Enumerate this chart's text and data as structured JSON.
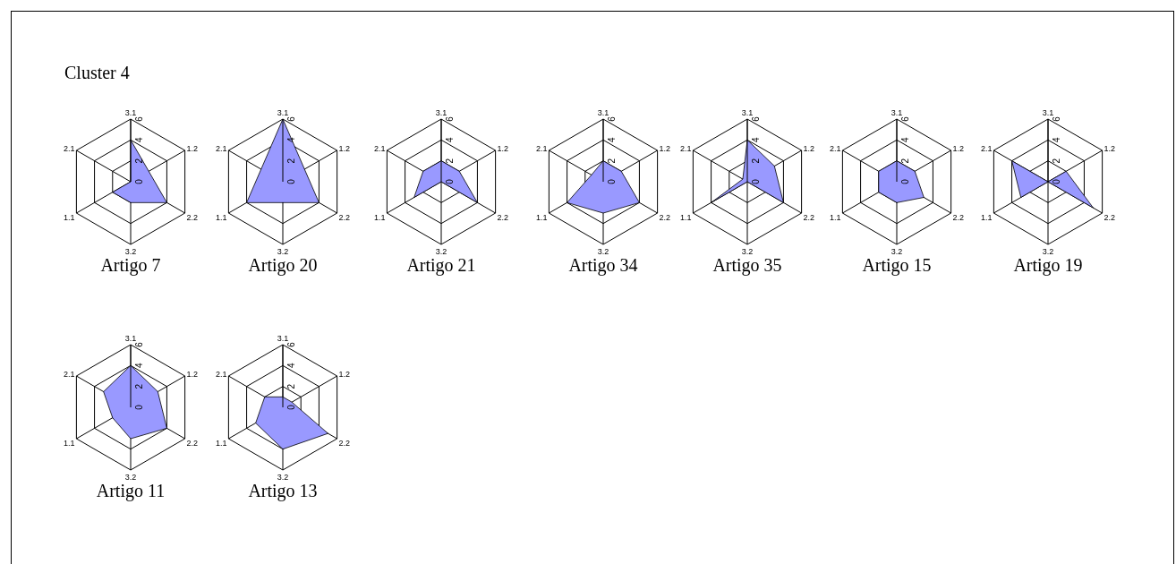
{
  "chart_data": [
    {
      "type": "radar",
      "title": "Artigo 7",
      "annotations": [
        "Cluster 4"
      ],
      "categories": [
        "3.1",
        "1.2",
        "2.2",
        "3.2",
        "1.1",
        "2.1"
      ],
      "series": [
        {
          "color": "#9999ff",
          "values": [
            4,
            2,
            4,
            2,
            2,
            0
          ]
        }
      ],
      "ylim": [
        0,
        6
      ],
      "yticks": [
        0,
        2,
        4,
        6
      ],
      "grid": true
    },
    {
      "type": "radar",
      "title": "Artigo 20",
      "categories": [
        "3.1",
        "1.2",
        "2.2",
        "3.2",
        "1.1",
        "2.1"
      ],
      "series": [
        {
          "color": "#9999ff",
          "values": [
            6,
            2.4,
            4,
            2,
            4,
            2.4
          ]
        }
      ],
      "ylim": [
        0,
        6
      ],
      "yticks": [
        0,
        2,
        4,
        6
      ],
      "grid": true
    },
    {
      "type": "radar",
      "title": "Artigo 21",
      "categories": [
        "3.1",
        "1.2",
        "2.2",
        "3.2",
        "1.1",
        "2.1"
      ],
      "series": [
        {
          "color": "#9999ff",
          "values": [
            2,
            2,
            4,
            0,
            3,
            2
          ]
        }
      ],
      "ylim": [
        0,
        6
      ],
      "yticks": [
        0,
        2,
        4,
        6
      ],
      "grid": true
    },
    {
      "type": "radar",
      "title": "Artigo 34",
      "categories": [
        "3.1",
        "1.2",
        "2.2",
        "3.2",
        "1.1",
        "2.1"
      ],
      "series": [
        {
          "color": "#9999ff",
          "values": [
            2,
            2,
            4,
            3,
            4,
            1.3
          ]
        }
      ],
      "ylim": [
        0,
        6
      ],
      "yticks": [
        0,
        2,
        4,
        6
      ],
      "grid": true
    },
    {
      "type": "radar",
      "title": "Artigo 35",
      "categories": [
        "3.1",
        "1.2",
        "2.2",
        "3.2",
        "1.1",
        "2.1"
      ],
      "series": [
        {
          "color": "#9999ff",
          "values": [
            4,
            3,
            4,
            0,
            4,
            0.5
          ]
        }
      ],
      "ylim": [
        0,
        6
      ],
      "yticks": [
        0,
        2,
        4,
        6
      ],
      "grid": true
    },
    {
      "type": "radar",
      "title": "Artigo 15",
      "categories": [
        "3.1",
        "1.2",
        "2.2",
        "3.2",
        "1.1",
        "2.1"
      ],
      "series": [
        {
          "color": "#9999ff",
          "values": [
            2,
            2,
            3,
            2,
            2,
            2
          ]
        }
      ],
      "ylim": [
        0,
        6
      ],
      "yticks": [
        0,
        2,
        4,
        6
      ],
      "grid": true
    },
    {
      "type": "radar",
      "title": "Artigo 19",
      "categories": [
        "3.1",
        "1.2",
        "2.2",
        "3.2",
        "1.1",
        "2.1"
      ],
      "series": [
        {
          "color": "#9999ff",
          "values": [
            0,
            2,
            5,
            0,
            3,
            4
          ]
        }
      ],
      "ylim": [
        0,
        6
      ],
      "yticks": [
        0,
        2,
        4,
        6
      ],
      "grid": true
    },
    {
      "type": "radar",
      "title": "Artigo 11",
      "categories": [
        "3.1",
        "1.2",
        "2.2",
        "3.2",
        "1.1",
        "2.1"
      ],
      "series": [
        {
          "color": "#9999ff",
          "values": [
            4,
            3,
            4,
            3,
            2,
            3
          ]
        }
      ],
      "ylim": [
        0,
        6
      ],
      "yticks": [
        0,
        2,
        4,
        6
      ],
      "grid": true
    },
    {
      "type": "radar",
      "title": "Artigo 13",
      "categories": [
        "3.1",
        "1.2",
        "2.2",
        "3.2",
        "1.1",
        "2.1"
      ],
      "series": [
        {
          "color": "#9999ff",
          "values": [
            1,
            1,
            5,
            4,
            3,
            2
          ]
        }
      ],
      "ylim": [
        0,
        6
      ],
      "yticks": [
        0,
        2,
        4,
        6
      ],
      "grid": true
    }
  ]
}
